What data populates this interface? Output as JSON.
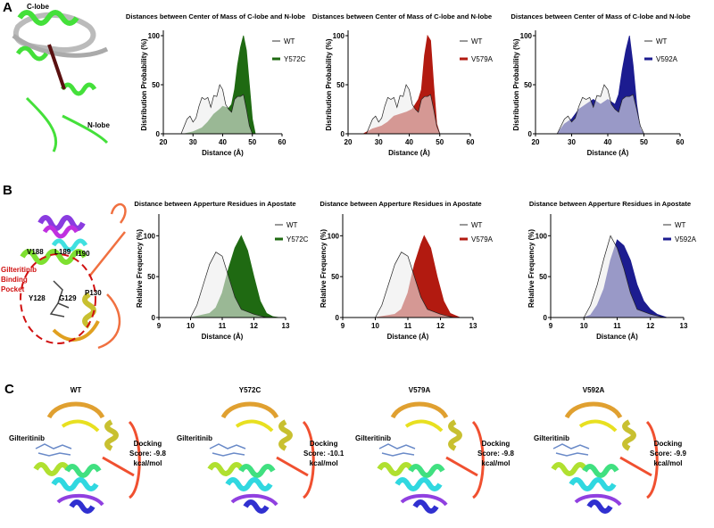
{
  "panels": {
    "a": {
      "letter": "A",
      "c_lobe": "C-lobe",
      "n_lobe": "N-lobe"
    },
    "b": {
      "letter": "B",
      "residues": [
        "V188",
        "L189",
        "I190",
        "Y128",
        "G129",
        "P130"
      ],
      "pocket_label": [
        "Gilteritinib",
        "Binding",
        "Pocket"
      ]
    },
    "c": {
      "letter": "C",
      "structures": [
        {
          "title": "WT",
          "ligand": "Gilteritinib",
          "score": [
            "Docking",
            "Score: -9.8",
            "kcal/mol"
          ]
        },
        {
          "title": "Y572C",
          "ligand": "Gilteritinib",
          "score": [
            "Docking",
            "Score: -10.1",
            "kcal/mol"
          ]
        },
        {
          "title": "V579A",
          "ligand": "Gilteritinib",
          "score": [
            "Docking",
            "Score: -9.8",
            "kcal/mol"
          ]
        },
        {
          "title": "V592A",
          "ligand": "Gilteritinib",
          "score": [
            "Docking",
            "Score: -9.9",
            "kcal/mol"
          ]
        }
      ]
    }
  },
  "colors": {
    "Y572C": "#1f6a12",
    "V579A": "#b21a10",
    "V592A": "#1c1c90",
    "WT_fill": "#ececec"
  },
  "chart_data": [
    {
      "type": "area",
      "title": "Distances between Center of Mass of C-lobe and N-lobe",
      "xlabel": "Distance (Å)",
      "ylabel": "Distribution Probability (%)",
      "xlim": [
        20,
        60
      ],
      "ylim": [
        0,
        100
      ],
      "xticks": [
        20,
        30,
        40,
        50,
        60
      ],
      "yticks": [
        0,
        50,
        100
      ],
      "legend": "top-right",
      "series": [
        {
          "name": "Y572C",
          "x": [
            27,
            30,
            33,
            35,
            37,
            39,
            40,
            41,
            42,
            43,
            44,
            45,
            46,
            47,
            48,
            49,
            50,
            51
          ],
          "y": [
            0,
            2,
            6,
            12,
            20,
            25,
            28,
            27,
            26,
            30,
            45,
            70,
            88,
            100,
            85,
            50,
            15,
            0
          ]
        },
        {
          "name": "WT",
          "x": [
            26,
            28,
            29,
            30,
            31,
            32,
            33,
            34,
            35,
            36,
            37,
            38,
            39,
            40,
            41,
            42,
            43,
            44,
            45,
            46,
            47,
            48,
            49,
            50
          ],
          "y": [
            0,
            15,
            18,
            12,
            16,
            28,
            37,
            35,
            37,
            27,
            39,
            38,
            50,
            45,
            30,
            25,
            22,
            35,
            38,
            38,
            40,
            25,
            8,
            0
          ]
        }
      ]
    },
    {
      "type": "area",
      "title": "Distances between Center of Mass of C-lobe and N-lobe",
      "xlabel": "Distance (Å)",
      "ylabel": "Distribution Probability (%)",
      "xlim": [
        20,
        60
      ],
      "ylim": [
        0,
        100
      ],
      "xticks": [
        20,
        30,
        40,
        50,
        60
      ],
      "yticks": [
        0,
        50,
        100
      ],
      "legend": "top-right",
      "series": [
        {
          "name": "V579A",
          "x": [
            25,
            28,
            31,
            33,
            35,
            37,
            39,
            41,
            43,
            44,
            45,
            46,
            47,
            48,
            49,
            50
          ],
          "y": [
            0,
            5,
            8,
            12,
            18,
            20,
            22,
            25,
            35,
            45,
            80,
            100,
            95,
            50,
            10,
            0
          ]
        },
        {
          "name": "WT",
          "x": [
            26,
            28,
            29,
            30,
            31,
            32,
            33,
            34,
            35,
            36,
            37,
            38,
            39,
            40,
            41,
            42,
            43,
            44,
            45,
            46,
            47,
            48,
            49,
            50
          ],
          "y": [
            0,
            15,
            18,
            12,
            16,
            28,
            37,
            35,
            37,
            27,
            39,
            38,
            50,
            45,
            30,
            25,
            22,
            35,
            38,
            38,
            40,
            25,
            8,
            0
          ]
        }
      ]
    },
    {
      "type": "area",
      "title": "Distances between Center of Mass of C-lobe and N-lobe",
      "xlabel": "Distance (Å)",
      "ylabel": "Distribution Probability (%)",
      "xlim": [
        20,
        60
      ],
      "ylim": [
        0,
        100
      ],
      "xticks": [
        20,
        30,
        40,
        50,
        60
      ],
      "yticks": [
        0,
        50,
        100
      ],
      "legend": "top-right",
      "series": [
        {
          "name": "V592A",
          "x": [
            26,
            28,
            30,
            32,
            34,
            36,
            38,
            40,
            42,
            43,
            44,
            45,
            46,
            47,
            48,
            49,
            50
          ],
          "y": [
            0,
            10,
            15,
            25,
            30,
            35,
            30,
            35,
            30,
            40,
            65,
            85,
            100,
            70,
            30,
            5,
            0
          ]
        },
        {
          "name": "WT",
          "x": [
            26,
            28,
            29,
            30,
            31,
            32,
            33,
            34,
            35,
            36,
            37,
            38,
            39,
            40,
            41,
            42,
            43,
            44,
            45,
            46,
            47,
            48,
            49,
            50
          ],
          "y": [
            0,
            15,
            18,
            12,
            16,
            28,
            37,
            35,
            37,
            27,
            39,
            38,
            50,
            45,
            30,
            25,
            22,
            35,
            38,
            38,
            40,
            25,
            8,
            0
          ]
        }
      ]
    },
    {
      "type": "area",
      "title": "Distance between Apperture Residues in Apostate",
      "xlabel": "Distance (Å)",
      "ylabel": "Relative Frequency (%)",
      "xlim": [
        9,
        13
      ],
      "ylim": [
        0,
        120
      ],
      "xticks": [
        9,
        10,
        11,
        12,
        13
      ],
      "yticks": [
        0,
        50,
        100
      ],
      "legend": "top-right",
      "series": [
        {
          "name": "Y572C",
          "x": [
            10.0,
            10.6,
            10.8,
            11.0,
            11.2,
            11.4,
            11.6,
            11.8,
            12.0,
            12.2,
            12.4,
            12.6,
            12.8
          ],
          "y": [
            0,
            5,
            12,
            30,
            60,
            85,
            100,
            82,
            50,
            20,
            5,
            1,
            0
          ]
        },
        {
          "name": "WT",
          "x": [
            10.0,
            10.2,
            10.4,
            10.6,
            10.8,
            11.0,
            11.2,
            11.4,
            11.6,
            11.8,
            12.0,
            12.2,
            12.4
          ],
          "y": [
            0,
            15,
            40,
            65,
            80,
            75,
            50,
            25,
            10,
            7,
            4,
            2,
            0
          ]
        }
      ]
    },
    {
      "type": "area",
      "title": "Distance between Apperture Residues in Apostate",
      "xlabel": "Distance (Å)",
      "ylabel": "Relative Frequency (%)",
      "xlim": [
        9,
        13
      ],
      "ylim": [
        0,
        120
      ],
      "xticks": [
        9,
        10,
        11,
        12,
        13
      ],
      "yticks": [
        0,
        50,
        100
      ],
      "legend": "top-right",
      "series": [
        {
          "name": "V579A",
          "x": [
            10.0,
            10.6,
            10.8,
            11.0,
            11.2,
            11.4,
            11.5,
            11.7,
            11.9,
            12.1,
            12.3,
            12.6
          ],
          "y": [
            0,
            4,
            10,
            30,
            65,
            90,
            100,
            85,
            50,
            20,
            5,
            0
          ]
        },
        {
          "name": "WT",
          "x": [
            10.0,
            10.2,
            10.4,
            10.6,
            10.8,
            11.0,
            11.2,
            11.4,
            11.6,
            11.8,
            12.0,
            12.2,
            12.4
          ],
          "y": [
            0,
            15,
            40,
            65,
            80,
            75,
            50,
            25,
            10,
            7,
            4,
            2,
            0
          ]
        }
      ]
    },
    {
      "type": "area",
      "title": "Distance between Apperture Residues in Apostate",
      "xlabel": "Distance (Å)",
      "ylabel": "Relative Frequency (%)",
      "xlim": [
        9,
        13
      ],
      "ylim": [
        0,
        120
      ],
      "xticks": [
        9,
        10,
        11,
        12,
        13
      ],
      "yticks": [
        0,
        50,
        100
      ],
      "legend": "top-right",
      "series": [
        {
          "name": "V592A",
          "x": [
            10.0,
            10.2,
            10.4,
            10.6,
            10.8,
            11.0,
            11.2,
            11.4,
            11.6,
            11.8,
            12.0,
            12.2,
            12.5
          ],
          "y": [
            0,
            3,
            15,
            35,
            70,
            95,
            88,
            70,
            40,
            20,
            10,
            4,
            0
          ]
        },
        {
          "name": "WT",
          "x": [
            10.0,
            10.2,
            10.4,
            10.6,
            10.8,
            11.0,
            11.2,
            11.4,
            11.6,
            11.8,
            12.0,
            12.3,
            12.4
          ],
          "y": [
            0,
            15,
            40,
            72,
            100,
            85,
            60,
            30,
            10,
            7,
            4,
            1,
            0
          ]
        }
      ]
    }
  ]
}
